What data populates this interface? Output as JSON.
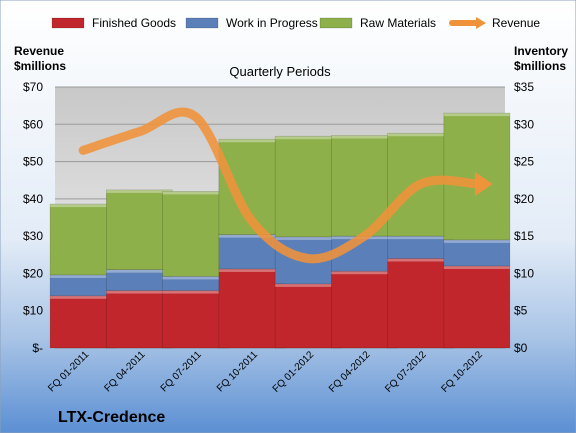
{
  "chart_data": {
    "type": "bar",
    "title": "Quarterly Periods",
    "company": "LTX-Credence",
    "left_axis_label": [
      "Revenue",
      "$millions"
    ],
    "right_axis_label": [
      "Inventory",
      "$millions"
    ],
    "categories": [
      "FQ 01-2011",
      "FQ 04-2011",
      "FQ 07-2011",
      "FQ 10-2011",
      "FQ 01-2012",
      "FQ 04-2012",
      "FQ 07-2012",
      "FQ 10-2012"
    ],
    "left_ticks": [
      "$-",
      "$10",
      "$20",
      "$30",
      "$40",
      "$50",
      "$60",
      "$70"
    ],
    "right_ticks": [
      "$0",
      "$5",
      "$10",
      "$15",
      "$20",
      "$25",
      "$30",
      "$35"
    ],
    "ylim_left": [
      0,
      70
    ],
    "ylim_right": [
      0,
      35
    ],
    "legend_position": "top",
    "series": [
      {
        "name": "Finished Goods",
        "axis": "right",
        "stack": true,
        "color": "#c0262b",
        "values": [
          7.0,
          7.7,
          7.7,
          10.6,
          8.6,
          10.3,
          12.0,
          11.0
        ]
      },
      {
        "name": "Work in Progress",
        "axis": "right",
        "stack": true,
        "color": "#5b7fb8",
        "values": [
          2.8,
          2.8,
          1.9,
          4.6,
          6.3,
          4.7,
          3.0,
          3.5
        ]
      },
      {
        "name": "Raw Materials",
        "axis": "right",
        "stack": true,
        "color": "#8eb04a",
        "values": [
          9.5,
          10.7,
          11.4,
          12.8,
          13.5,
          13.5,
          13.8,
          17.0
        ]
      },
      {
        "name": "Revenue",
        "axis": "left",
        "type": "line",
        "color": "#f0923a",
        "values": [
          53,
          58,
          62,
          34,
          24,
          30,
          44,
          44
        ]
      }
    ]
  }
}
